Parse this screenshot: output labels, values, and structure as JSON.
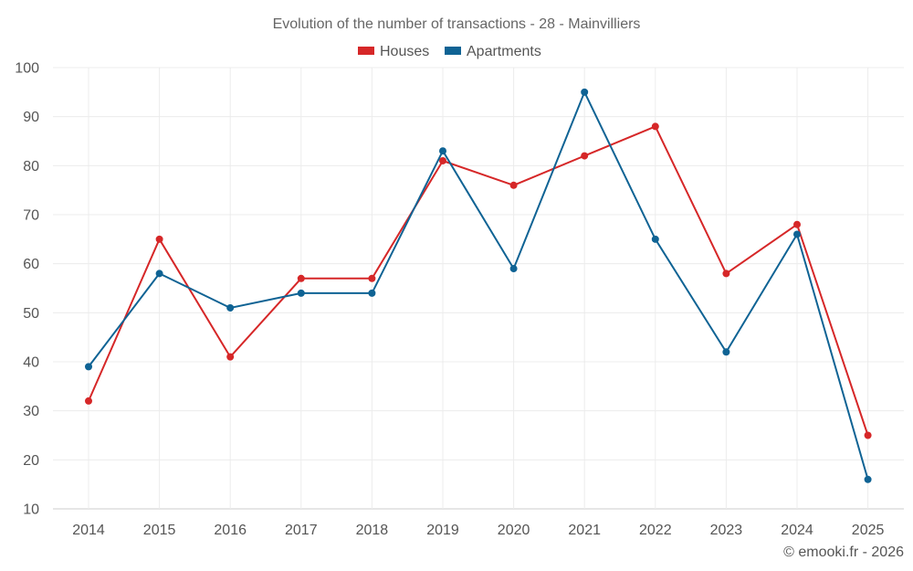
{
  "chart_data": {
    "type": "line",
    "title": "Evolution of the number of transactions - 28 - Mainvilliers",
    "categories": [
      "2014",
      "2015",
      "2016",
      "2017",
      "2018",
      "2019",
      "2020",
      "2021",
      "2022",
      "2023",
      "2024",
      "2025"
    ],
    "series": [
      {
        "name": "Houses",
        "color": "#d62728",
        "values": [
          32,
          65,
          41,
          57,
          57,
          81,
          76,
          82,
          88,
          58,
          68,
          25
        ]
      },
      {
        "name": "Apartments",
        "color": "#0f6394",
        "values": [
          39,
          58,
          51,
          54,
          54,
          83,
          59,
          95,
          65,
          42,
          66,
          16
        ]
      }
    ],
    "ylim": [
      10,
      100
    ],
    "yticks": [
      10,
      20,
      30,
      40,
      50,
      60,
      70,
      80,
      90,
      100
    ],
    "xlabel": "",
    "ylabel": "",
    "legend_position": "top-center",
    "grid": true
  },
  "credit": "© emooki.fr - 2026"
}
